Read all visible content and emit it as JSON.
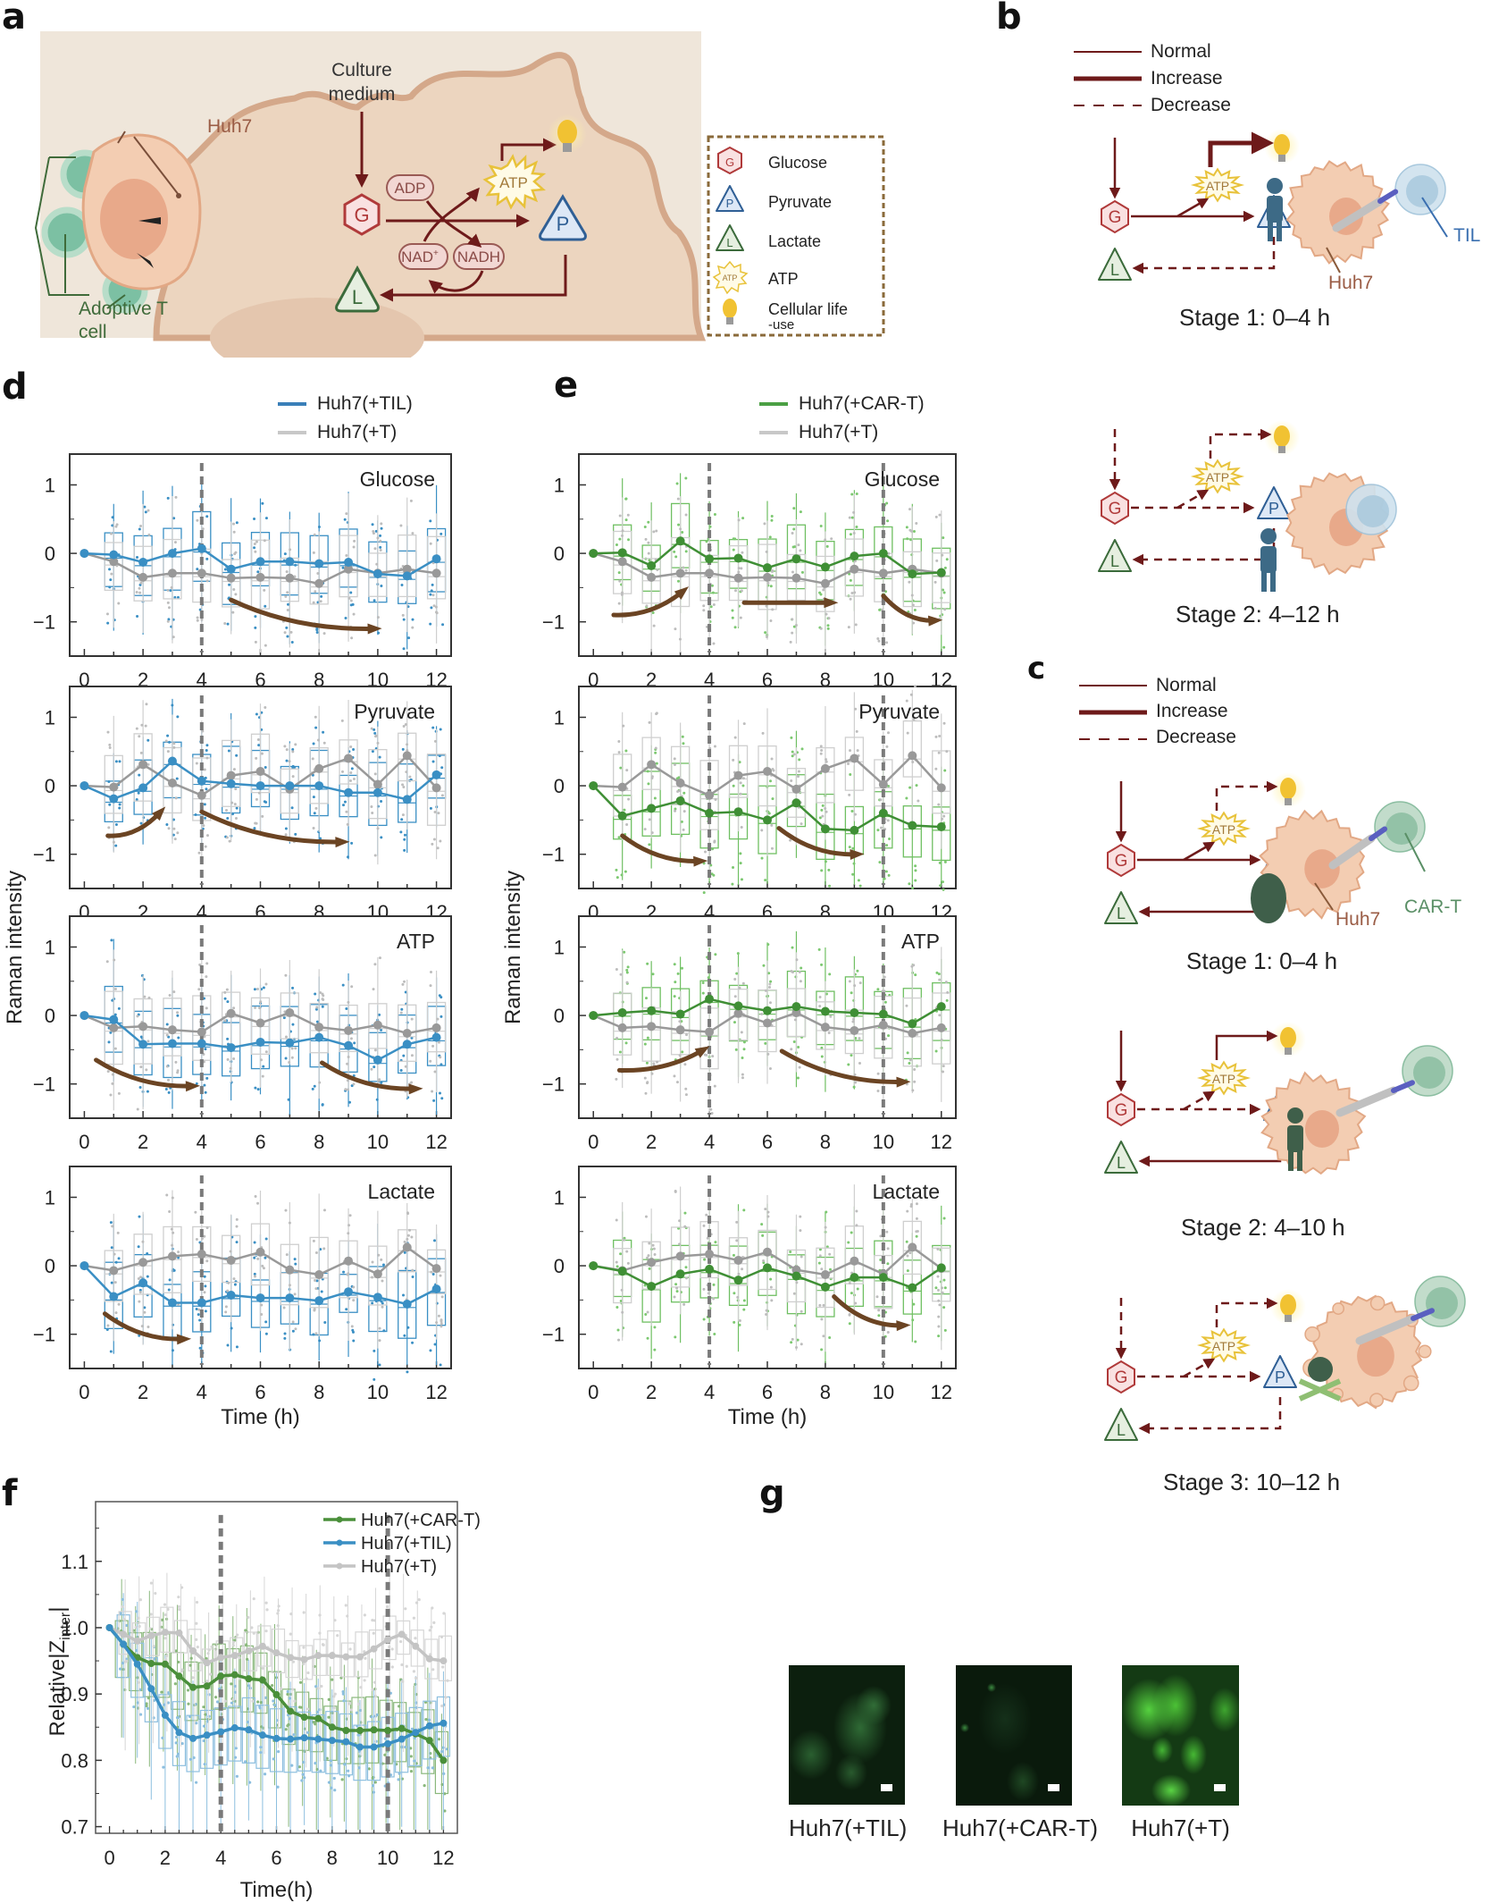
{
  "panels": {
    "a": {
      "letter": "a",
      "labels": {
        "culture_medium_1": "Culture",
        "culture_medium_2": "medium",
        "huh7": "Huh7",
        "adoptive_t_1": "Adoptive T",
        "adoptive_t_2": "cell",
        "adp": "ADP",
        "atp": "ATP",
        "nad": "NAD",
        "nad_sup": "+",
        "nadh": "NADH",
        "g": "G",
        "p": "P",
        "l": "L"
      },
      "legend": [
        {
          "icon": "glucose-hexagon-icon",
          "symbol": "G",
          "label": "Glucose"
        },
        {
          "icon": "pyruvate-triangle-icon",
          "symbol": "P",
          "label": "Pyruvate"
        },
        {
          "icon": "lactate-triangle-icon",
          "symbol": "L",
          "label": "Lactate"
        },
        {
          "icon": "atp-starburst-icon",
          "symbol": "ATP",
          "label": "ATP"
        },
        {
          "icon": "lightbulb-icon",
          "symbol": "",
          "label": "Cellular life",
          "label2": "-use"
        }
      ]
    },
    "b": {
      "letter": "b",
      "legend": [
        {
          "style": "normal",
          "label": "Normal"
        },
        {
          "style": "increase",
          "label": "Increase"
        },
        {
          "style": "decrease",
          "label": "Decrease"
        }
      ],
      "stages": [
        {
          "label": "Stage 1: 0–4 h",
          "effector": "TIL",
          "target": "Huh7"
        },
        {
          "label": "Stage 2: 4–12 h"
        }
      ]
    },
    "c": {
      "letter": "c",
      "legend": [
        {
          "style": "normal",
          "label": "Normal"
        },
        {
          "style": "increase",
          "label": "Increase"
        },
        {
          "style": "decrease",
          "label": "Decrease"
        }
      ],
      "stages": [
        {
          "label": "Stage 1: 0–4 h",
          "effector": "CAR-T",
          "target": "Huh7"
        },
        {
          "label": "Stage 2: 4–10 h"
        },
        {
          "label": "Stage 3: 10–12 h"
        }
      ]
    },
    "d": {
      "letter": "d"
    },
    "e": {
      "letter": "e"
    },
    "f": {
      "letter": "f"
    },
    "g": {
      "letter": "g",
      "images": [
        {
          "caption": "Huh7(+TIL)",
          "brightness": "dim"
        },
        {
          "caption": "Huh7(+CAR-T)",
          "brightness": "very dim"
        },
        {
          "caption": "Huh7(+T)",
          "brightness": "bright"
        }
      ]
    }
  },
  "colors": {
    "til": "#3a8fc4",
    "cart": "#3f8f35",
    "control": "#9a9a9a",
    "control_light": "#c8c8c8",
    "arrow_brown": "#6b4423",
    "pathway": "#6e1a1a",
    "glucose": "#b03a3a",
    "pyruvate": "#2f5f95",
    "lactate": "#3b6b3b",
    "atp": "#e8c23a"
  },
  "chart_data": [
    {
      "id": "d",
      "type": "line",
      "subtype": "box-with-mean-line",
      "legend": [
        "Huh7(+TIL)",
        "Huh7(+T)"
      ],
      "legend_position": "top-right above",
      "xlabel": "Time (h)",
      "ylabel": "Raman intensity",
      "x": [
        0,
        1,
        2,
        3,
        4,
        5,
        6,
        7,
        8,
        9,
        10,
        11,
        12
      ],
      "xticks": [
        "0",
        "2",
        "4",
        "6",
        "8",
        "10",
        "12"
      ],
      "yticks": [
        "−1",
        "0",
        "1"
      ],
      "ylim": [
        -1.5,
        1.45
      ],
      "xlim": [
        -0.5,
        12.5
      ],
      "vlines": [
        4
      ],
      "subplots": [
        {
          "title": "Glucose",
          "series": [
            {
              "name": "Huh7(+TIL)",
              "values": [
                0,
                -0.02,
                -0.13,
                0,
                0.07,
                -0.23,
                -0.12,
                -0.12,
                -0.15,
                -0.13,
                -0.3,
                -0.33,
                -0.08
              ]
            },
            {
              "name": "Huh7(+T)",
              "values": [
                0,
                -0.12,
                -0.35,
                -0.29,
                -0.29,
                -0.36,
                -0.35,
                -0.36,
                -0.44,
                -0.23,
                -0.29,
                -0.23,
                -0.29
              ]
            }
          ],
          "trend_arrows": [
            {
              "from": [
                5,
                -0.68
              ],
              "to": [
                9.9,
                -1.1
              ],
              "curve": "down"
            }
          ]
        },
        {
          "title": "Pyruvate",
          "series": [
            {
              "name": "Huh7(+TIL)",
              "values": [
                0,
                -0.19,
                -0.03,
                0.36,
                0.07,
                0.03,
                0,
                0,
                0,
                -0.1,
                -0.1,
                -0.2,
                0.16
              ]
            },
            {
              "name": "Huh7(+T)",
              "values": [
                0,
                -0.02,
                0.31,
                0.04,
                -0.14,
                0.15,
                0.21,
                -0.05,
                0.25,
                0.4,
                0.02,
                0.44,
                -0.03
              ]
            }
          ],
          "trend_arrows": [
            {
              "from": [
                0.8,
                -0.73
              ],
              "to": [
                2.6,
                -0.38
              ],
              "curve": "up"
            },
            {
              "from": [
                4,
                -0.38
              ],
              "to": [
                8.8,
                -0.82
              ],
              "curve": "down"
            }
          ]
        },
        {
          "title": "ATP",
          "series": [
            {
              "name": "Huh7(+TIL)",
              "values": [
                0,
                -0.06,
                -0.42,
                -0.41,
                -0.41,
                -0.47,
                -0.39,
                -0.4,
                -0.32,
                -0.44,
                -0.65,
                -0.42,
                -0.32
              ]
            },
            {
              "name": "Huh7(+T)",
              "values": [
                0,
                -0.18,
                -0.16,
                -0.21,
                -0.24,
                0.03,
                -0.11,
                0.04,
                -0.17,
                -0.22,
                -0.14,
                -0.26,
                -0.18
              ]
            }
          ],
          "trend_arrows": [
            {
              "from": [
                0.4,
                -0.65
              ],
              "to": [
                3.7,
                -1.03
              ],
              "curve": "down"
            },
            {
              "from": [
                8.1,
                -0.69
              ],
              "to": [
                11.3,
                -1.07
              ],
              "curve": "down"
            }
          ]
        },
        {
          "title": "Lactate",
          "series": [
            {
              "name": "Huh7(+TIL)",
              "values": [
                0,
                -0.45,
                -0.25,
                -0.54,
                -0.54,
                -0.43,
                -0.47,
                -0.47,
                -0.51,
                -0.38,
                -0.46,
                -0.56,
                -0.34
              ]
            },
            {
              "name": "Huh7(+T)",
              "values": [
                0,
                -0.07,
                0.05,
                0.14,
                0.17,
                0.08,
                0.2,
                -0.06,
                -0.13,
                0.07,
                -0.12,
                0.27,
                -0.04
              ]
            }
          ],
          "trend_arrows": [
            {
              "from": [
                0.7,
                -0.7
              ],
              "to": [
                3.4,
                -1.07
              ],
              "curve": "down"
            }
          ]
        }
      ]
    },
    {
      "id": "e",
      "type": "line",
      "subtype": "box-with-mean-line",
      "legend": [
        "Huh7(+CAR-T)",
        "Huh7(+T)"
      ],
      "legend_position": "top-right above",
      "xlabel": "Time (h)",
      "ylabel": "Raman intensity",
      "x": [
        0,
        1,
        2,
        3,
        4,
        5,
        6,
        7,
        8,
        9,
        10,
        11,
        12
      ],
      "xticks": [
        "0",
        "2",
        "4",
        "6",
        "8",
        "10",
        "12"
      ],
      "yticks": [
        "−1",
        "0",
        "1"
      ],
      "ylim": [
        -1.5,
        1.45
      ],
      "xlim": [
        -0.5,
        12.5
      ],
      "vlines": [
        4,
        10
      ],
      "subplots": [
        {
          "title": "Glucose",
          "series": [
            {
              "name": "Huh7(+CAR-T)",
              "values": [
                0,
                0.01,
                -0.18,
                0.18,
                -0.08,
                -0.07,
                -0.21,
                -0.08,
                -0.2,
                -0.04,
                0,
                -0.3,
                -0.28
              ]
            },
            {
              "name": "Huh7(+T)",
              "values": [
                0,
                -0.12,
                -0.35,
                -0.29,
                -0.29,
                -0.36,
                -0.35,
                -0.36,
                -0.44,
                -0.23,
                -0.29,
                -0.23,
                -0.29
              ]
            }
          ],
          "trend_arrows": [
            {
              "from": [
                0.7,
                -0.9
              ],
              "to": [
                3.1,
                -0.55
              ],
              "curve": "up"
            },
            {
              "from": [
                5.2,
                -0.72
              ],
              "to": [
                8.2,
                -0.72
              ],
              "curve": "flat"
            },
            {
              "from": [
                10,
                -0.62
              ],
              "to": [
                11.8,
                -0.98
              ],
              "curve": "down"
            }
          ]
        },
        {
          "title": "Pyruvate",
          "series": [
            {
              "name": "Huh7(+CAR-T)",
              "values": [
                0,
                -0.44,
                -0.33,
                -0.22,
                -0.4,
                -0.38,
                -0.5,
                -0.25,
                -0.63,
                -0.65,
                -0.4,
                -0.58,
                -0.6
              ]
            },
            {
              "name": "Huh7(+T)",
              "values": [
                0,
                -0.02,
                0.31,
                0.04,
                -0.14,
                0.15,
                0.21,
                -0.05,
                0.25,
                0.4,
                0.02,
                0.44,
                -0.03
              ]
            }
          ],
          "trend_arrows": [
            {
              "from": [
                1,
                -0.73
              ],
              "to": [
                3.7,
                -1.1
              ],
              "curve": "down"
            },
            {
              "from": [
                6.4,
                -0.62
              ],
              "to": [
                9.1,
                -1.0
              ],
              "curve": "down"
            }
          ]
        },
        {
          "title": "ATP",
          "series": [
            {
              "name": "Huh7(+CAR-T)",
              "values": [
                0,
                0.04,
                0.07,
                0.02,
                0.24,
                0.14,
                0.07,
                0.13,
                0.06,
                0.04,
                0.02,
                -0.12,
                0.13
              ]
            },
            {
              "name": "Huh7(+T)",
              "values": [
                0,
                -0.18,
                -0.16,
                -0.21,
                -0.24,
                0.03,
                -0.11,
                0.04,
                -0.17,
                -0.22,
                -0.14,
                -0.26,
                -0.18
              ]
            }
          ],
          "trend_arrows": [
            {
              "from": [
                0.9,
                -0.8
              ],
              "to": [
                3.8,
                -0.5
              ],
              "curve": "up"
            },
            {
              "from": [
                6.5,
                -0.52
              ],
              "to": [
                10.7,
                -0.97
              ],
              "curve": "down"
            }
          ]
        },
        {
          "title": "Lactate",
          "series": [
            {
              "name": "Huh7(+CAR-T)",
              "values": [
                0,
                -0.08,
                -0.3,
                -0.12,
                -0.05,
                -0.21,
                -0.03,
                -0.15,
                -0.31,
                -0.17,
                -0.17,
                -0.32,
                -0.03
              ]
            },
            {
              "name": "Huh7(+T)",
              "values": [
                0,
                -0.07,
                0.05,
                0.14,
                0.17,
                0.08,
                0.2,
                -0.06,
                -0.13,
                0.07,
                -0.12,
                0.27,
                -0.04
              ]
            }
          ],
          "trend_arrows": [
            {
              "from": [
                8.3,
                -0.45
              ],
              "to": [
                10.7,
                -0.87
              ],
              "curve": "down"
            }
          ]
        }
      ]
    },
    {
      "id": "f",
      "type": "line",
      "subtype": "box-with-mean-line",
      "xlabel": "Time(h)",
      "ylabel": "Relative|Z",
      "ylabel_sub": "inter",
      "ylabel_end": "|",
      "legend_position": "top-right",
      "x": [
        0,
        0.5,
        1,
        1.5,
        2,
        2.5,
        3,
        3.5,
        4,
        4.5,
        5,
        5.5,
        6,
        6.5,
        7,
        7.5,
        8,
        8.5,
        9,
        9.5,
        10,
        10.5,
        11,
        11.5,
        12
      ],
      "xticks": [
        "0",
        "2",
        "4",
        "6",
        "8",
        "10",
        "12"
      ],
      "yticks": [
        "0.7",
        "0.8",
        "0.9",
        "1.0",
        "1.1"
      ],
      "ylim": [
        0.69,
        1.19
      ],
      "xlim": [
        -0.5,
        12.5
      ],
      "vlines": [
        4,
        10
      ],
      "series": [
        {
          "name": "Huh7(+CAR-T)",
          "values": [
            1.0,
            0.975,
            0.955,
            0.946,
            0.945,
            0.927,
            0.91,
            0.912,
            0.927,
            0.929,
            0.923,
            0.921,
            0.899,
            0.874,
            0.865,
            0.863,
            0.85,
            0.845,
            0.845,
            0.846,
            0.845,
            0.848,
            0.84,
            0.83,
            0.8
          ]
        },
        {
          "name": "Huh7(+TIL)",
          "values": [
            1.0,
            0.975,
            0.945,
            0.908,
            0.868,
            0.842,
            0.833,
            0.838,
            0.843,
            0.849,
            0.846,
            0.838,
            0.833,
            0.832,
            0.834,
            0.832,
            0.83,
            0.828,
            0.82,
            0.82,
            0.825,
            0.832,
            0.842,
            0.852,
            0.856
          ]
        },
        {
          "name": "Huh7(+T)",
          "values": [
            1.0,
            0.99,
            0.98,
            0.988,
            0.993,
            0.992,
            0.965,
            0.947,
            0.955,
            0.958,
            0.965,
            0.972,
            0.962,
            0.955,
            0.952,
            0.958,
            0.958,
            0.956,
            0.956,
            0.968,
            0.982,
            0.99,
            0.972,
            0.953,
            0.95
          ]
        }
      ]
    }
  ]
}
